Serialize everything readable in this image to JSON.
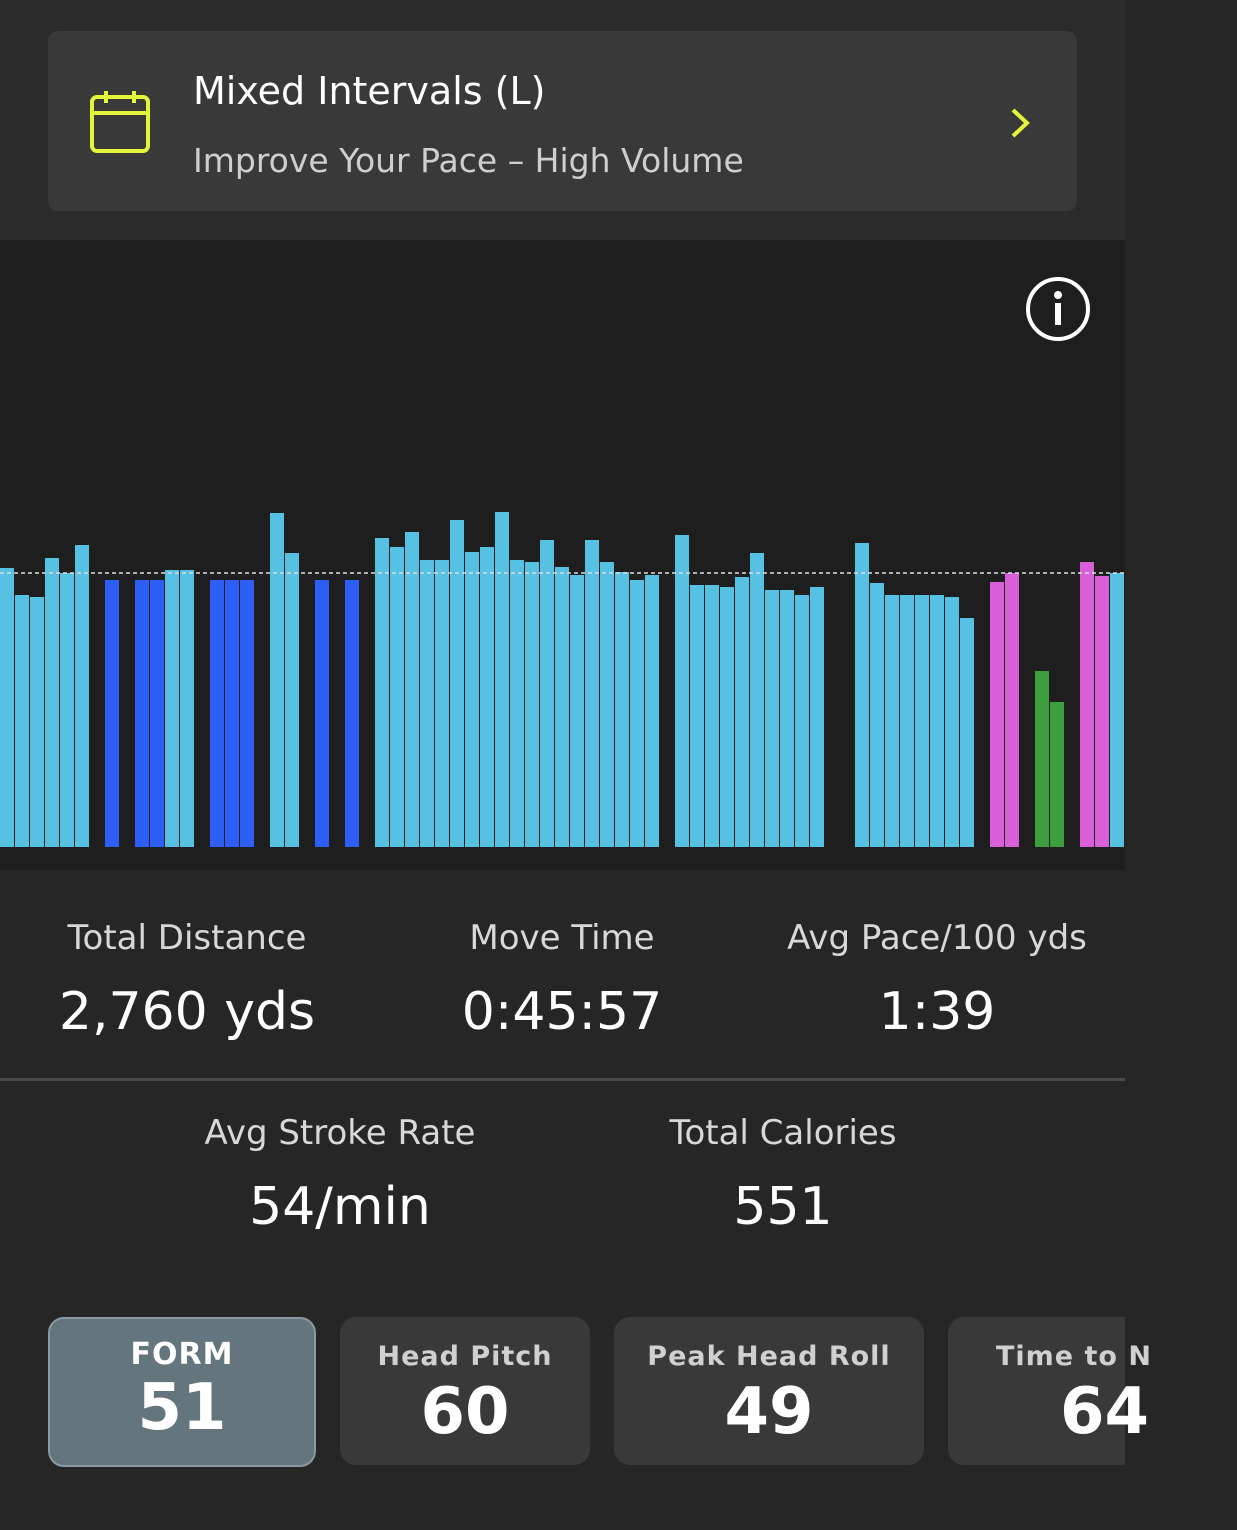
{
  "header": {
    "title": "Mixed Intervals (L)",
    "subtitle": "Improve Your Pace – High Volume"
  },
  "chart_data": {
    "type": "bar",
    "values": [
      279,
      252,
      250,
      289,
      274,
      302,
      null,
      267,
      null,
      267,
      267,
      277,
      277,
      null,
      267,
      267,
      267,
      null,
      334,
      294,
      null,
      267,
      null,
      267,
      null,
      309,
      300,
      315,
      287,
      287,
      327,
      295,
      300,
      335,
      287,
      285,
      307,
      280,
      272,
      307,
      285,
      275,
      267,
      272,
      null,
      312,
      262,
      262,
      260,
      270,
      294,
      257,
      257,
      252,
      260,
      null,
      null,
      304,
      264,
      252,
      252,
      252,
      252,
      250,
      229,
      null,
      265,
      274,
      null,
      176,
      145,
      null,
      285,
      271,
      274
    ],
    "colors": [
      "#56c1e3",
      "#56c1e3",
      "#56c1e3",
      "#56c1e3",
      "#56c1e3",
      "#56c1e3",
      null,
      "#2d5ef5",
      null,
      "#2d5ef5",
      "#2d5ef5",
      "#56c1e3",
      "#56c1e3",
      null,
      "#2d5ef5",
      "#2d5ef5",
      "#2d5ef5",
      null,
      "#56c1e3",
      "#56c1e3",
      null,
      "#2d5ef5",
      null,
      "#2d5ef5",
      null,
      "#56c1e3",
      "#56c1e3",
      "#56c1e3",
      "#56c1e3",
      "#56c1e3",
      "#56c1e3",
      "#56c1e3",
      "#56c1e3",
      "#56c1e3",
      "#56c1e3",
      "#56c1e3",
      "#56c1e3",
      "#56c1e3",
      "#56c1e3",
      "#56c1e3",
      "#56c1e3",
      "#56c1e3",
      "#56c1e3",
      "#56c1e3",
      null,
      "#56c1e3",
      "#56c1e3",
      "#56c1e3",
      "#56c1e3",
      "#56c1e3",
      "#56c1e3",
      "#56c1e3",
      "#56c1e3",
      "#56c1e3",
      "#56c1e3",
      null,
      null,
      "#56c1e3",
      "#56c1e3",
      "#56c1e3",
      "#56c1e3",
      "#56c1e3",
      "#56c1e3",
      "#56c1e3",
      "#56c1e3",
      null,
      "#d95fd9",
      "#d95fd9",
      null,
      "#3c9e3c",
      "#3c9e3c",
      null,
      "#d95fd9",
      "#d95fd9",
      "#56c1e3"
    ],
    "ylim": [
      0,
      600
    ],
    "reference_line": 274
  },
  "stats": [
    {
      "label": "Total Distance",
      "value": "2,760 yds"
    },
    {
      "label": "Move Time",
      "value": "0:45:57"
    },
    {
      "label": "Avg Pace/100 yds",
      "value": "1:39"
    }
  ],
  "stats2": [
    {
      "label": "Avg Stroke Rate",
      "value": "54/min"
    },
    {
      "label": "Total Calories",
      "value": "551"
    }
  ],
  "metrics": [
    {
      "label": "FORM",
      "value": "51"
    },
    {
      "label": "Head Pitch",
      "value": "60"
    },
    {
      "label": "Peak Head Roll",
      "value": "49"
    },
    {
      "label": "Time to N",
      "value": "64"
    }
  ]
}
